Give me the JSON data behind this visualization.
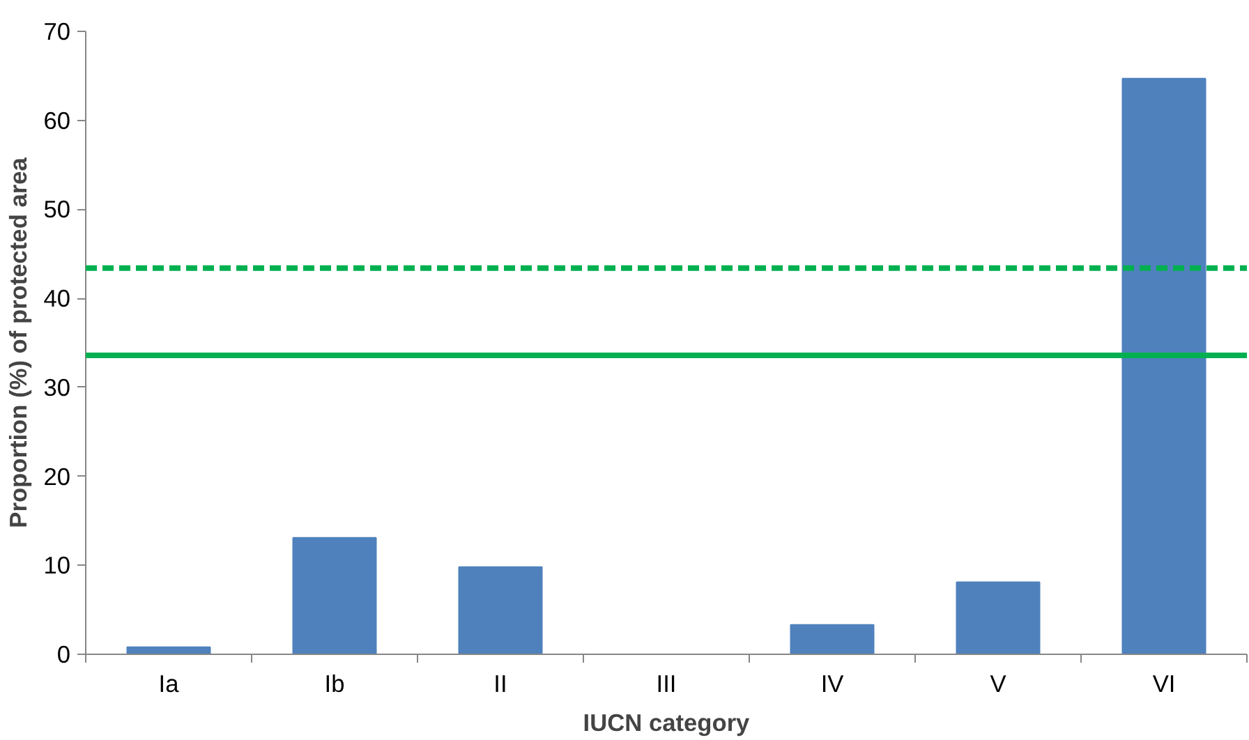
{
  "chart_data": {
    "type": "bar",
    "xlabel": "IUCN category",
    "ylabel": "Proportion (%) of protected area",
    "categories": [
      "Ia",
      "Ib",
      "II",
      "III",
      "IV",
      "V",
      "VI"
    ],
    "values": [
      0.8,
      13.1,
      9.8,
      0,
      3.3,
      8.1,
      64.7
    ],
    "color": "#4f81bd",
    "ylim": [
      0,
      70
    ],
    "yticks": [
      0,
      10,
      20,
      30,
      40,
      50,
      60,
      70
    ],
    "grid": false,
    "ref_lines": [
      {
        "axis": "y",
        "value": 43.4,
        "color": "#00b050",
        "line_style": "dashed"
      },
      {
        "axis": "y",
        "value": 33.6,
        "color": "#00b050",
        "line_style": "solid"
      }
    ]
  }
}
